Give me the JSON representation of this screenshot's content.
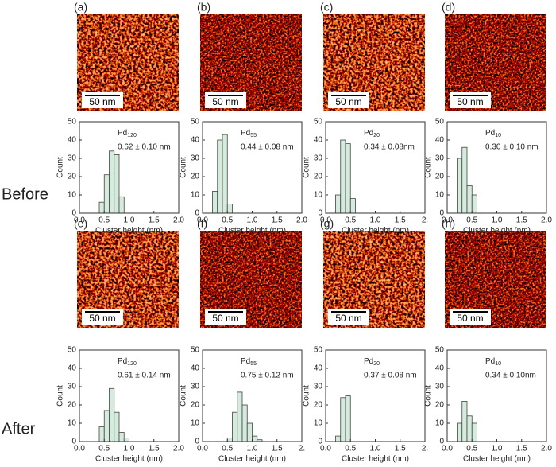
{
  "row_labels": [
    "Before",
    "After"
  ],
  "panels": [
    {
      "label": "(a)",
      "scale_bar": "50 nm"
    },
    {
      "label": "(b)",
      "scale_bar": "50 nm"
    },
    {
      "label": "(c)",
      "scale_bar": "50 nm"
    },
    {
      "label": "(d)",
      "scale_bar": "50 nm"
    },
    {
      "label": "(e)",
      "scale_bar": "50 nm"
    },
    {
      "label": "(f)",
      "scale_bar": "50 nm"
    },
    {
      "label": "(g)",
      "scale_bar": "50 nm"
    },
    {
      "label": "(h)",
      "scale_bar": "50 nm"
    }
  ],
  "chart_data": [
    {
      "type": "histogram",
      "label": "Pd",
      "label_sub": "120",
      "stats": "0.62 ± 0.10 nm",
      "xlabel": "Cluster height (nm)",
      "ylabel": "Count",
      "color": "#d5ebdd",
      "bins": [
        0.4,
        0.5,
        0.6,
        0.7,
        0.8,
        0.9
      ],
      "values": [
        6,
        21,
        34,
        32,
        9
      ],
      "xlim": [
        0,
        2
      ],
      "xticks": [
        {
          "value": 0,
          "label": "0.0"
        },
        {
          "value": 0.5,
          "label": "0.5"
        },
        {
          "value": 1,
          "label": "1.0"
        },
        {
          "value": 1.5,
          "label": "1.5"
        },
        {
          "value": 2,
          "label": "2.0"
        }
      ],
      "ylim": [
        0,
        50
      ],
      "yticks": [
        0,
        10,
        20,
        30,
        40,
        50
      ]
    },
    {
      "type": "histogram",
      "label": "Pd",
      "label_sub": "55",
      "stats": "0.44 ± 0.08 nm",
      "xlabel": "Cluster height (nm)",
      "ylabel": "Count",
      "color": "#d5ebdd",
      "bins": [
        0.2,
        0.3,
        0.4,
        0.5,
        0.6
      ],
      "values": [
        12,
        40,
        43,
        5
      ],
      "xlim": [
        0,
        2
      ],
      "xticks": [
        {
          "value": 0,
          "label": "0.0"
        },
        {
          "value": 0.5,
          "label": "0.5"
        },
        {
          "value": 1,
          "label": "1.0"
        },
        {
          "value": 1.5,
          "label": "1.5"
        },
        {
          "value": 2,
          "label": "2.0"
        }
      ],
      "ylim": [
        0,
        50
      ],
      "yticks": [
        0,
        10,
        20,
        30,
        40,
        50
      ]
    },
    {
      "type": "histogram",
      "label": "Pd",
      "label_sub": "20",
      "stats": "0.34 ± 0.08nm",
      "xlabel": "Cluster height (nm)",
      "ylabel": "Count",
      "color": "#d5ebdd",
      "bins": [
        0.2,
        0.3,
        0.4,
        0.5,
        0.6
      ],
      "values": [
        10,
        40,
        38,
        8
      ],
      "xlim": [
        0,
        2
      ],
      "xticks": [
        {
          "value": 0,
          "label": "0.0"
        },
        {
          "value": 0.5,
          "label": "0.5"
        },
        {
          "value": 1,
          "label": "1.0"
        },
        {
          "value": 1.5,
          "label": "1.5"
        },
        {
          "value": 2,
          "label": "2."
        }
      ],
      "ylim": [
        0,
        50
      ],
      "yticks": [
        0,
        10,
        20,
        30,
        40,
        50
      ]
    },
    {
      "type": "histogram",
      "label": "Pd",
      "label_sub": "10",
      "stats": "0.30 ± 0.10 nm",
      "xlabel": "Cluster height (nm)",
      "ylabel": "Count",
      "color": "#d5ebdd",
      "bins": [
        0.2,
        0.3,
        0.4,
        0.5,
        0.6
      ],
      "values": [
        30,
        36,
        15,
        10
      ],
      "xlim": [
        0,
        2
      ],
      "xticks": [
        {
          "value": 0,
          "label": "0.0"
        },
        {
          "value": 0.5,
          "label": "0.5"
        },
        {
          "value": 1,
          "label": "1.0"
        },
        {
          "value": 1.5,
          "label": "1.5"
        },
        {
          "value": 2,
          "label": "2.0"
        }
      ],
      "ylim": [
        0,
        50
      ],
      "yticks": [
        0,
        10,
        20,
        30,
        40,
        50
      ]
    },
    {
      "type": "histogram",
      "label": "Pd",
      "label_sub": "120",
      "stats": "0.61 ± 0.14 nm",
      "xlabel": "Cluster height (nm)",
      "ylabel": "Count",
      "color": "#d5ebdd",
      "bins": [
        0.4,
        0.5,
        0.6,
        0.7,
        0.8,
        0.9,
        1.0
      ],
      "values": [
        8,
        17,
        29,
        16,
        5,
        2
      ],
      "xlim": [
        0,
        2
      ],
      "xticks": [
        {
          "value": 0,
          "label": "0.0"
        },
        {
          "value": 0.5,
          "label": "0.5"
        },
        {
          "value": 1,
          "label": "1.0"
        },
        {
          "value": 1.5,
          "label": "1.5"
        },
        {
          "value": 2,
          "label": "2.0"
        }
      ],
      "ylim": [
        0,
        50
      ],
      "yticks": [
        0,
        10,
        20,
        30,
        40,
        50
      ]
    },
    {
      "type": "histogram",
      "label": "Pd",
      "label_sub": "55",
      "stats": "0.75 ± 0.12 nm",
      "xlabel": "Cluster height (nm)",
      "ylabel": "Count",
      "color": "#d5ebdd",
      "bins": [
        0.5,
        0.6,
        0.7,
        0.8,
        0.9,
        1.0,
        1.1,
        1.2
      ],
      "values": [
        2,
        16,
        27,
        20,
        10,
        3,
        1
      ],
      "xlim": [
        0,
        2
      ],
      "xticks": [
        {
          "value": 0,
          "label": "0.0"
        },
        {
          "value": 0.5,
          "label": "0.5"
        },
        {
          "value": 1,
          "label": "1.0"
        },
        {
          "value": 1.5,
          "label": "1.5"
        },
        {
          "value": 2,
          "label": "2."
        }
      ],
      "ylim": [
        0,
        50
      ],
      "yticks": [
        0,
        10,
        20,
        30,
        40,
        50
      ]
    },
    {
      "type": "histogram",
      "label": "Pd",
      "label_sub": "20",
      "stats": "0.37 ± 0.08 nm",
      "xlabel": "Cluster height (nm)",
      "ylabel": "Count",
      "color": "#d5ebdd",
      "bins": [
        0.2,
        0.3,
        0.4,
        0.5
      ],
      "values": [
        3,
        24,
        25
      ],
      "xlim": [
        0,
        2
      ],
      "xticks": [
        {
          "value": 0,
          "label": "0.0"
        },
        {
          "value": 0.5,
          "label": "0.5"
        },
        {
          "value": 1,
          "label": "1.0"
        },
        {
          "value": 1.5,
          "label": "1.5"
        },
        {
          "value": 2,
          "label": "2."
        }
      ],
      "ylim": [
        0,
        50
      ],
      "yticks": [
        0,
        10,
        20,
        30,
        40,
        50
      ]
    },
    {
      "type": "histogram",
      "label": "Pd",
      "label_sub": "10",
      "stats": "0.34 ± 0.10nm",
      "xlabel": "Cluster height (nm)",
      "ylabel": "Count",
      "color": "#d5ebdd",
      "bins": [
        0.2,
        0.3,
        0.4,
        0.5,
        0.6
      ],
      "values": [
        10,
        22,
        14,
        10
      ],
      "xlim": [
        0,
        2
      ],
      "xticks": [
        {
          "value": 0,
          "label": "0.0"
        },
        {
          "value": 0.5,
          "label": "0.5"
        },
        {
          "value": 1,
          "label": "1.0"
        },
        {
          "value": 1.5,
          "label": "1.5"
        },
        {
          "value": 2,
          "label": "2.0"
        }
      ],
      "ylim": [
        0,
        50
      ],
      "yticks": [
        0,
        10,
        20,
        30,
        40,
        50
      ]
    }
  ]
}
